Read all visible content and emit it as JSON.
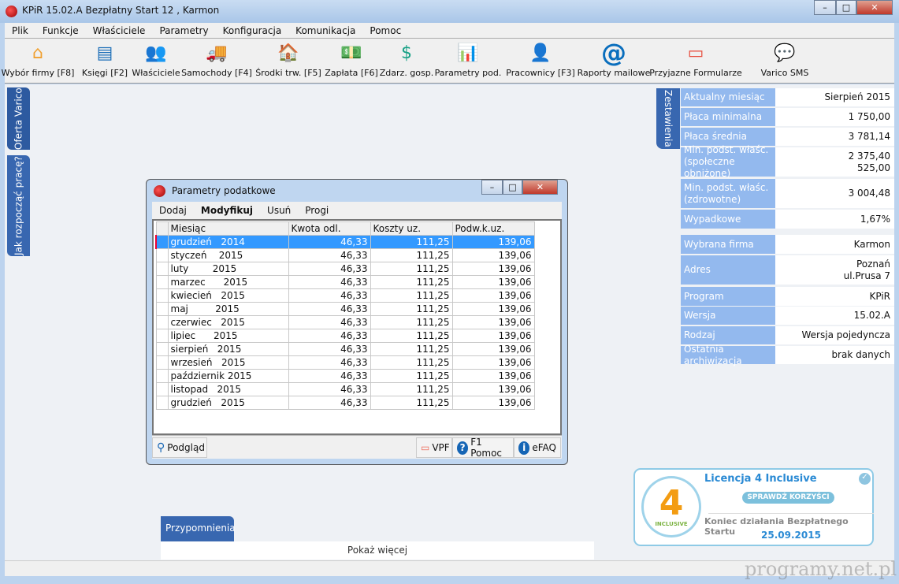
{
  "window": {
    "title": "KPiR 15.02.A Bezpłatny Start 12 , Karmon"
  },
  "menu": [
    "Plik",
    "Funkcje",
    "Właściciele",
    "Parametry",
    "Konfiguracja",
    "Komunikacja",
    "Pomoc"
  ],
  "toolbar": [
    {
      "label": "Wybór firmy [F8]",
      "icon": "house-icon"
    },
    {
      "label": "Księgi [F2]",
      "icon": "book-icon"
    },
    {
      "label": "Właściciele",
      "icon": "owners-icon"
    },
    {
      "label": "Samochody [F4]",
      "icon": "truck-icon"
    },
    {
      "label": "Środki trw. [F5]",
      "icon": "fixed-assets-icon"
    },
    {
      "label": "Zapłata [F6]",
      "icon": "payment-icon"
    },
    {
      "label": "Zdarz. gosp.",
      "icon": "business-event-icon"
    },
    {
      "label": "Parametry pod.",
      "icon": "tax-params-icon"
    },
    {
      "label": "Pracownicy [F3]",
      "icon": "employees-icon"
    },
    {
      "label": "Raporty mailowe",
      "icon": "at-icon"
    },
    {
      "label": "Przyjazne Formularze",
      "icon": "forms-icon"
    },
    {
      "label": "Varico SMS",
      "icon": "sms-icon"
    }
  ],
  "left_tabs": [
    "Oferta Varico",
    "Jak rozpocząć pracę?"
  ],
  "summary": {
    "tab": "Zestawienia",
    "rows": [
      {
        "label": "Aktualny miesiąc",
        "value": [
          "Sierpień 2015"
        ]
      },
      {
        "label": "Płaca minimalna",
        "value": [
          "1 750,00"
        ]
      },
      {
        "label": "Płaca średnia",
        "value": [
          "3 781,14"
        ]
      },
      {
        "label": "Min. podst. właśc. (społeczne obniżone)",
        "value": [
          "2 375,40",
          "525,00"
        ]
      },
      {
        "label": "Min. podst. właśc. (zdrowotne)",
        "value": [
          "3 004,48"
        ]
      },
      {
        "label": "Wypadkowe",
        "value": [
          "1,67%"
        ]
      },
      {
        "label": "Wybrana firma",
        "value": [
          "Karmon"
        ]
      },
      {
        "label": "Adres",
        "value": [
          "Poznań",
          "ul.Prusa 7"
        ]
      },
      {
        "label": "Program",
        "value": [
          "KPiR"
        ]
      },
      {
        "label": "Wersja",
        "value": [
          "15.02.A"
        ]
      },
      {
        "label": "Rodzaj",
        "value": [
          "Wersja pojedyncza"
        ]
      },
      {
        "label": "Ostatnia archiwizacja",
        "value": [
          "brak danych"
        ]
      }
    ]
  },
  "dialog": {
    "title": "Parametry podatkowe",
    "menu": [
      "Dodaj",
      "Modyfikuj",
      "Usuń",
      "Progi"
    ],
    "columns": [
      "Miesiąc",
      "Kwota odl.",
      "Koszty uz.",
      "Podw.k.uz."
    ],
    "rows": [
      [
        "grudzień   2014",
        "46,33",
        "111,25",
        "139,06"
      ],
      [
        "styczeń    2015",
        "46,33",
        "111,25",
        "139,06"
      ],
      [
        "luty        2015",
        "46,33",
        "111,25",
        "139,06"
      ],
      [
        "marzec      2015",
        "46,33",
        "111,25",
        "139,06"
      ],
      [
        "kwiecień   2015",
        "46,33",
        "111,25",
        "139,06"
      ],
      [
        "maj         2015",
        "46,33",
        "111,25",
        "139,06"
      ],
      [
        "czerwiec   2015",
        "46,33",
        "111,25",
        "139,06"
      ],
      [
        "lipiec      2015",
        "46,33",
        "111,25",
        "139,06"
      ],
      [
        "sierpień   2015",
        "46,33",
        "111,25",
        "139,06"
      ],
      [
        "wrzesień   2015",
        "46,33",
        "111,25",
        "139,06"
      ],
      [
        "październik 2015",
        "46,33",
        "111,25",
        "139,06"
      ],
      [
        "listopad   2015",
        "46,33",
        "111,25",
        "139,06"
      ],
      [
        "grudzień   2015",
        "46,33",
        "111,25",
        "139,06"
      ]
    ],
    "selected_row": 0,
    "buttons": {
      "preview": "Podgląd",
      "vpf": "VPF",
      "help": "F1 Pomoc",
      "efaq": "eFAQ"
    }
  },
  "license": {
    "title": "Licencja 4 Inclusive",
    "button": "SPRAWDŹ KORZYŚCI",
    "logo_text": "INCLUSIVE",
    "end_text": "Koniec działania Bezpłatnego Startu",
    "end_date": "25.09.2015"
  },
  "reminders": {
    "tab": "Przypomnienia",
    "more": "Pokaż więcej"
  },
  "watermark": "programy.net.pl"
}
